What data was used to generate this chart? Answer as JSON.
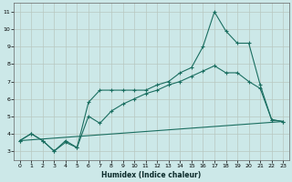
{
  "xlabel": "Humidex (Indice chaleur)",
  "bg_color": "#cce8e8",
  "grid_color": "#b8c8c0",
  "line_color": "#1a6e60",
  "xlim": [
    -0.5,
    23.5
  ],
  "ylim": [
    2.5,
    11.5
  ],
  "xticks": [
    0,
    1,
    2,
    3,
    4,
    5,
    6,
    7,
    8,
    9,
    10,
    11,
    12,
    13,
    14,
    15,
    16,
    17,
    18,
    19,
    20,
    21,
    22,
    23
  ],
  "yticks": [
    3,
    4,
    5,
    6,
    7,
    8,
    9,
    10,
    11
  ],
  "line1_x": [
    0,
    1,
    2,
    3,
    4,
    5,
    6,
    7,
    8,
    9,
    10,
    11,
    12,
    13,
    14,
    15,
    16,
    17,
    18,
    19,
    20,
    21,
    22,
    23
  ],
  "line1_y": [
    3.6,
    4.0,
    3.6,
    3.0,
    3.6,
    3.2,
    5.8,
    6.5,
    6.5,
    6.5,
    6.5,
    6.5,
    6.8,
    7.0,
    7.5,
    7.8,
    9.0,
    11.0,
    9.9,
    9.2,
    9.2,
    6.8,
    4.8,
    4.7
  ],
  "line2_x": [
    0,
    1,
    2,
    3,
    4,
    5,
    6,
    7,
    8,
    9,
    10,
    11,
    12,
    13,
    14,
    15,
    16,
    17,
    18,
    19,
    20,
    21,
    22,
    23
  ],
  "line2_y": [
    3.6,
    4.0,
    3.6,
    3.0,
    3.5,
    3.2,
    5.0,
    4.6,
    5.3,
    5.7,
    6.0,
    6.3,
    6.5,
    6.8,
    7.0,
    7.3,
    7.6,
    7.9,
    7.5,
    7.5,
    7.0,
    6.6,
    4.8,
    4.7
  ],
  "line3_x": [
    0,
    23
  ],
  "line3_y": [
    3.6,
    4.7
  ]
}
